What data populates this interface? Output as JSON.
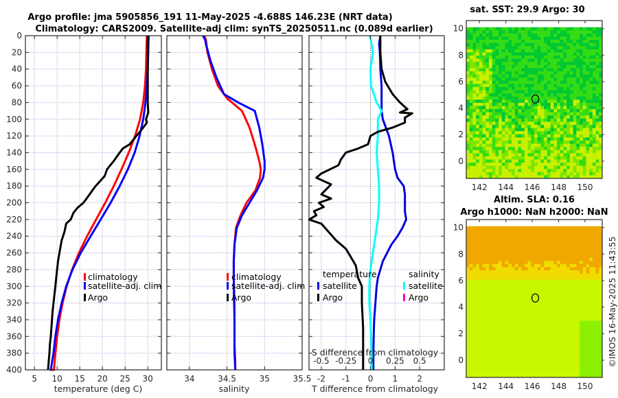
{
  "header": {
    "title_line1": "Argo profile: jma 5905856_191 11-May-2025 -4.688S 146.23E (NRT data)",
    "title_line2": "Climatology: CARS2009. Satellite-adj clim: synTS_20250511.nc (0.089d earlier)"
  },
  "copyright": "©IMOS 16-May-2025 11:43:55",
  "colors": {
    "climatology": "#ff0000",
    "satellite_adj": "#0000ff",
    "satellite_T": "#0000dd",
    "argo": "#000000",
    "satellite_S": "#00ffff",
    "argo_S": "#ff00cc",
    "grid": "#c8c8e6"
  },
  "chart_data": [
    {
      "id": "temperature",
      "type": "line",
      "title": "",
      "xlabel": "temperature (deg C)",
      "ylabel": "",
      "xlim": [
        3,
        33
      ],
      "ylim": [
        400,
        0
      ],
      "xticks": [
        5,
        10,
        15,
        20,
        25,
        30
      ],
      "yticks": [
        0,
        20,
        40,
        60,
        80,
        100,
        120,
        140,
        160,
        180,
        200,
        220,
        240,
        260,
        280,
        300,
        320,
        340,
        360,
        380,
        400
      ],
      "grid": true,
      "legend": {
        "placement": "center-right",
        "entries": [
          "climatology",
          "satellite-adj. clim",
          "Argo"
        ]
      },
      "series": [
        {
          "name": "climatology",
          "color": "#ff0000",
          "x": [
            29.8,
            29.7,
            29.6,
            29.4,
            29.0,
            28.3,
            27.2,
            25.8,
            24.2,
            22.5,
            20.6,
            18.6,
            16.6,
            14.8,
            13.3,
            12.1,
            11.2,
            10.5,
            10.0,
            9.6,
            9.3,
            9.0,
            8.8,
            8.6,
            8.5,
            8.4
          ],
          "depth": [
            0,
            20,
            40,
            60,
            80,
            100,
            120,
            140,
            160,
            180,
            200,
            220,
            240,
            260,
            280,
            300,
            320,
            340,
            360,
            380,
            400,
            400,
            400,
            400,
            400,
            400
          ]
        },
        {
          "name": "satellite-adj. clim",
          "color": "#0000ff",
          "x": [
            30.2,
            30.1,
            30.0,
            29.8,
            29.5,
            29.0,
            28.2,
            27.1,
            25.6,
            23.8,
            21.8,
            19.6,
            17.4,
            15.2,
            13.4,
            12.0,
            11.0,
            10.2,
            9.6,
            9.2,
            8.9,
            8.6,
            8.5
          ],
          "depth": [
            0,
            20,
            40,
            60,
            80,
            100,
            120,
            140,
            160,
            180,
            200,
            220,
            240,
            260,
            280,
            300,
            320,
            340,
            360,
            380,
            390,
            400,
            400
          ]
        },
        {
          "name": "Argo",
          "color": "#000000",
          "x": [
            30.0,
            30.0,
            30.0,
            30.0,
            30.0,
            30.1,
            29.6,
            29.8,
            29.0,
            27.5,
            26.0,
            24.5,
            23.8,
            22.5,
            21.0,
            20.5,
            18.5,
            17.8,
            16.5,
            15.8,
            14.5,
            13.6,
            13.0,
            12.0,
            11.6,
            11.0,
            10.5,
            10.2,
            9.9,
            9.6,
            9.3,
            9.0,
            8.8,
            8.6,
            8.4,
            8.3,
            8.1,
            8.0
          ],
          "depth": [
            0,
            20,
            40,
            60,
            80,
            92,
            100,
            104,
            110,
            120,
            130,
            135,
            140,
            150,
            160,
            168,
            180,
            185,
            195,
            200,
            206,
            212,
            220,
            225,
            235,
            245,
            260,
            270,
            285,
            300,
            315,
            330,
            345,
            360,
            370,
            380,
            392,
            400
          ]
        }
      ]
    },
    {
      "id": "salinity",
      "type": "line",
      "title": "",
      "xlabel": "salinity",
      "ylabel": "",
      "xlim": [
        33.7,
        35.5
      ],
      "ylim": [
        400,
        0
      ],
      "xticks": [
        34,
        34.5,
        35,
        35.5
      ],
      "grid": true,
      "legend": {
        "placement": "center-right",
        "entries": [
          "climatology",
          "satellite-adj. clim",
          "Argo"
        ]
      },
      "series": [
        {
          "name": "climatology",
          "color": "#ff0000",
          "x": [
            34.2,
            34.22,
            34.24,
            34.3,
            34.38,
            34.5,
            34.7,
            34.8,
            34.87,
            34.93,
            34.95,
            34.94,
            34.88,
            34.76,
            34.68,
            34.62,
            34.6,
            34.59,
            34.59,
            34.6,
            34.6,
            34.6,
            34.61,
            34.61
          ],
          "depth": [
            0,
            5,
            20,
            40,
            60,
            75,
            90,
            110,
            130,
            150,
            160,
            170,
            185,
            200,
            215,
            230,
            250,
            270,
            290,
            320,
            350,
            370,
            390,
            400
          ]
        },
        {
          "name": "satellite-adj. clim",
          "color": "#0000ff",
          "x": [
            34.18,
            34.21,
            34.22,
            34.28,
            34.36,
            34.46,
            34.65,
            34.87,
            34.93,
            34.97,
            35.0,
            35.0,
            34.98,
            34.9,
            34.8,
            34.7,
            34.63,
            34.6,
            34.59,
            34.59,
            34.6,
            34.6,
            34.61
          ],
          "depth": [
            0,
            5,
            10,
            30,
            50,
            70,
            80,
            90,
            110,
            130,
            150,
            160,
            170,
            185,
            200,
            215,
            230,
            250,
            270,
            300,
            340,
            380,
            400
          ]
        }
      ]
    },
    {
      "id": "difference",
      "type": "line",
      "title": "",
      "xlabel": "T difference from climatology",
      "xlabel_top": "S difference from climatology",
      "xlim": [
        -2.5,
        3
      ],
      "ylim": [
        400,
        0
      ],
      "xticks": [
        -2,
        -1,
        0,
        1,
        2
      ],
      "xticks_S": [
        -0.5,
        -0.25,
        0,
        0.25,
        0.5
      ],
      "grid": true,
      "legend": {
        "placement": "center",
        "temperature_title": "temperature",
        "salinity_title": "salinity",
        "temperature_entries": [
          "satellite",
          "Argo"
        ],
        "salinity_entries": [
          "satellite",
          "Argo"
        ]
      },
      "series": [
        {
          "name": "T satellite",
          "color": "#0000dd",
          "x": [
            0.4,
            0.35,
            0.38,
            0.4,
            0.45,
            0.45,
            0.45,
            0.5,
            0.75,
            0.9,
            0.95,
            1.0,
            1.1,
            1.35,
            1.4,
            1.4,
            1.4,
            1.45,
            1.3,
            1.1,
            0.85,
            0.5,
            0.3,
            0.25,
            0.2,
            0.15,
            0.13,
            0.12,
            0.12,
            0.12
          ],
          "depth": [
            0,
            10,
            20,
            40,
            60,
            80,
            90,
            100,
            120,
            140,
            150,
            160,
            170,
            180,
            190,
            200,
            210,
            220,
            230,
            240,
            250,
            270,
            290,
            300,
            320,
            340,
            360,
            380,
            390,
            400
          ]
        },
        {
          "name": "S satellite",
          "color": "#00ffff",
          "x": [
            -0.04,
            0.02,
            0.1,
            0.0,
            0.02,
            0.25,
            0.45,
            0.3,
            0.3,
            0.25,
            0.3,
            0.35,
            0.35,
            0.3,
            0.2,
            0.1,
            0.0,
            -0.05,
            -0.05,
            0.0,
            0.05,
            0.05
          ],
          "depth": [
            0,
            5,
            20,
            40,
            60,
            80,
            90,
            100,
            120,
            140,
            160,
            180,
            200,
            220,
            240,
            260,
            280,
            300,
            320,
            340,
            380,
            400
          ]
        },
        {
          "name": "T Argo",
          "color": "#000000",
          "x": [
            0.4,
            0.4,
            0.45,
            0.6,
            0.9,
            1.2,
            1.5,
            1.2,
            1.7,
            1.4,
            1.4,
            0.9,
            0.3,
            0.0,
            -0.1,
            -0.5,
            -1.0,
            -1.2,
            -1.3,
            -2.0,
            -2.2,
            -1.6,
            -2.0,
            -1.6,
            -2.1,
            -1.9,
            -2.3,
            -2.2,
            -2.5,
            -2.0,
            -1.4,
            -1.0,
            -0.8,
            -0.6,
            -0.5,
            -0.35,
            -0.35,
            -0.3,
            -0.3,
            -0.3
          ],
          "depth": [
            0,
            20,
            40,
            55,
            70,
            80,
            88,
            92,
            93,
            98,
            104,
            110,
            115,
            120,
            130,
            135,
            140,
            148,
            155,
            165,
            170,
            178,
            190,
            195,
            200,
            205,
            210,
            215,
            220,
            225,
            245,
            255,
            265,
            275,
            290,
            300,
            320,
            350,
            380,
            400
          ]
        }
      ]
    },
    {
      "id": "sst_map",
      "type": "heatmap",
      "title": "sat. SST: 29.9 Argo: 30",
      "xlim": [
        141,
        151.3
      ],
      "ylim": [
        -1.3,
        10.6
      ],
      "xticks": [
        142,
        144,
        146,
        148,
        150
      ],
      "yticks": [
        0,
        2,
        4,
        6,
        8,
        10
      ],
      "marker": {
        "lon": 146.23,
        "lat": 4.688,
        "label": "Argo position"
      },
      "colormap": [
        "#00c832",
        "#35dc15",
        "#7ce600",
        "#c8f000"
      ]
    },
    {
      "id": "sla_map",
      "type": "heatmap",
      "title": "Altim. SLA: 0.16",
      "subtitle": "Argo h1000: NaN h2000: NaN",
      "xlim": [
        141,
        151.3
      ],
      "ylim": [
        -1.3,
        10.6
      ],
      "xticks": [
        142,
        144,
        146,
        148,
        150
      ],
      "yticks": [
        0,
        2,
        4,
        6,
        8,
        10
      ],
      "marker": {
        "lon": 146.23,
        "lat": 4.688,
        "label": "Argo position"
      },
      "colormap": [
        "#8cf000",
        "#c8f800",
        "#f0dc00",
        "#f0a800"
      ]
    }
  ]
}
